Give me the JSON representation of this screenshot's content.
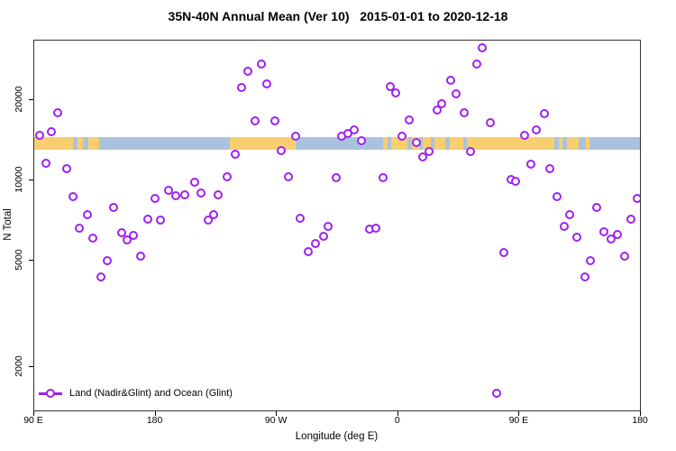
{
  "chart_data": {
    "type": "scatter",
    "title": "35N-40N Annual Mean (Ver 10)   2015-01-01 to 2020-12-18",
    "xlabel": "Longitude (deg E)",
    "ylabel": "N Total",
    "x_axis": {
      "note": "Longitude axis spans 450 degrees eastward starting at 90E; pos_deg is offset from left edge (90E).",
      "range_deg": [
        0,
        450
      ],
      "ticks": [
        {
          "pos_deg": 0,
          "label": "90 E"
        },
        {
          "pos_deg": 90,
          "label": "180"
        },
        {
          "pos_deg": 180,
          "label": "90 W"
        },
        {
          "pos_deg": 270,
          "label": "0"
        },
        {
          "pos_deg": 360,
          "label": "90 E"
        },
        {
          "pos_deg": 450,
          "label": "180"
        }
      ]
    },
    "y_axis": {
      "scale": "log",
      "range": [
        1365,
        33400
      ],
      "ticks": [
        20000,
        10000,
        5000,
        2000
      ]
    },
    "legend": {
      "position": "bottom-left",
      "entries": [
        {
          "label": "Land (Nadir&Glint) and Ocean (Glint)",
          "symbol": "circle-on-line",
          "color": "#A020F0"
        }
      ]
    },
    "map_band": {
      "description": "35N-40N land/ocean map strip drawn across the plot",
      "n_top": 14500,
      "n_bottom": 13000,
      "ocean_color": "#A9C3DE",
      "land_color": "#F8CE6E",
      "land_segments_deg": [
        [
          0,
          29
        ],
        [
          32,
          36
        ],
        [
          40,
          48
        ],
        [
          145,
          194
        ],
        [
          259,
          262
        ],
        [
          265,
          386
        ],
        [
          389,
          392
        ],
        [
          395,
          404
        ],
        [
          409,
          412
        ]
      ],
      "ocean_patches_deg": [
        [
          277,
          280
        ],
        [
          286,
          288
        ],
        [
          294,
          297
        ],
        [
          305,
          308
        ],
        [
          318,
          321
        ]
      ]
    },
    "series": [
      {
        "name": "Land (Nadir&Glint) and Ocean (Glint)",
        "marker": "open-circle",
        "color": "#A020F0",
        "points_format": [
          "pos_deg",
          "n_total"
        ],
        "points": [
          [
            17.4,
            17900
          ],
          [
            12.7,
            15200
          ],
          [
            4,
            14700
          ],
          [
            8.7,
            11600
          ],
          [
            24.1,
            11100
          ],
          [
            28.7,
            8710
          ],
          [
            39.4,
            7450
          ],
          [
            58.8,
            7930
          ],
          [
            89.6,
            8550
          ],
          [
            99.6,
            9190
          ],
          [
            105,
            8770
          ],
          [
            111.7,
            8840
          ],
          [
            119,
            9860
          ],
          [
            123.7,
            8980
          ],
          [
            136.4,
            8840
          ],
          [
            143.1,
            10300
          ],
          [
            133.1,
            7450
          ],
          [
            129,
            7120
          ],
          [
            84.2,
            7180
          ],
          [
            93.6,
            7120
          ],
          [
            149.1,
            12500
          ],
          [
            33.4,
            6640
          ],
          [
            43.5,
            6080
          ],
          [
            64.9,
            6370
          ],
          [
            68.9,
            5990
          ],
          [
            73.5,
            6230
          ],
          [
            78.9,
            5210
          ],
          [
            54.2,
            5010
          ],
          [
            49.5,
            4360
          ],
          [
            168.5,
            27300
          ],
          [
            158.5,
            25700
          ],
          [
            153.8,
            22300
          ],
          [
            172.5,
            22900
          ],
          [
            264.1,
            22500
          ],
          [
            268.1,
            21300
          ],
          [
            163.8,
            16700
          ],
          [
            178.5,
            16700
          ],
          [
            278.1,
            16900
          ],
          [
            193.9,
            14600
          ],
          [
            228,
            14600
          ],
          [
            232.7,
            15000
          ],
          [
            237.4,
            15400
          ],
          [
            242.7,
            14100
          ],
          [
            272.8,
            14600
          ],
          [
            283.5,
            13900
          ],
          [
            183.2,
            12900
          ],
          [
            288.2,
            12200
          ],
          [
            292.9,
            12800
          ],
          [
            188.5,
            10300
          ],
          [
            224,
            10200
          ],
          [
            258.7,
            10200
          ],
          [
            197.2,
            7210
          ],
          [
            203.3,
            5420
          ],
          [
            208.6,
            5810
          ],
          [
            214.6,
            6180
          ],
          [
            218,
            6740
          ],
          [
            248.7,
            6590
          ],
          [
            253.4,
            6640
          ],
          [
            332.3,
            31400
          ],
          [
            328.3,
            27300
          ],
          [
            308.9,
            23800
          ],
          [
            312.9,
            21100
          ],
          [
            302.2,
            19300
          ],
          [
            298.9,
            18400
          ],
          [
            318.9,
            17900
          ],
          [
            338.3,
            16500
          ],
          [
            378.4,
            17800
          ],
          [
            372.4,
            15400
          ],
          [
            363.7,
            14700
          ],
          [
            323.6,
            12800
          ],
          [
            368.4,
            11500
          ],
          [
            382.4,
            11100
          ],
          [
            353.7,
            10100
          ],
          [
            357,
            9960
          ],
          [
            387.8,
            8710
          ],
          [
            417.2,
            7930
          ],
          [
            447.3,
            8550
          ],
          [
            397.1,
            7450
          ],
          [
            442.6,
            7180
          ],
          [
            393.1,
            6740
          ],
          [
            402.4,
            6130
          ],
          [
            422.5,
            6420
          ],
          [
            427.9,
            6040
          ],
          [
            432.5,
            6270
          ],
          [
            348.3,
            5380
          ],
          [
            412.6,
            5010
          ],
          [
            437.9,
            5210
          ],
          [
            408.6,
            4340
          ],
          [
            343,
            1600
          ]
        ]
      }
    ]
  }
}
